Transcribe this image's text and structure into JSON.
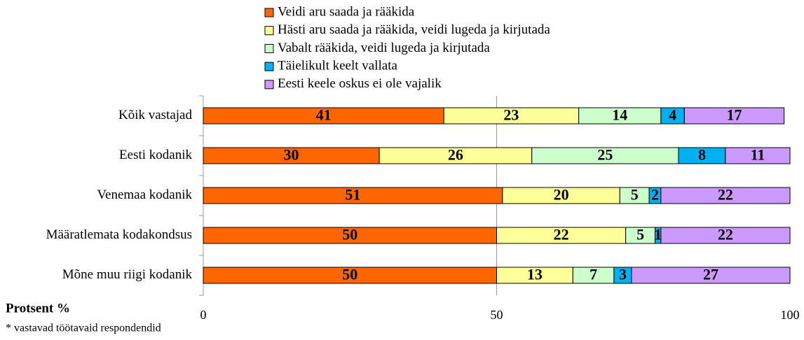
{
  "chart_data": {
    "type": "stacked-bar-horizontal",
    "categories": [
      "Kõik vastajad",
      "Eesti kodanik",
      "Venemaa kodanik",
      "Määratlemata kodakondsus",
      "Mõne muu riigi kodanik"
    ],
    "series": [
      {
        "name": "Veidi aru saada ja rääkida",
        "color": "#ff6600",
        "values": [
          41,
          30,
          51,
          50,
          50
        ]
      },
      {
        "name": "Hästi aru saada ja rääkida, veidi lugeda ja kirjutada",
        "color": "#ffff99",
        "values": [
          23,
          26,
          20,
          22,
          13
        ]
      },
      {
        "name": "Vabalt rääkida, veidi lugeda ja kirjutada",
        "color": "#ccffcc",
        "values": [
          14,
          25,
          5,
          5,
          7
        ]
      },
      {
        "name": "Täielikult keelt vallata",
        "color": "#00b0f0",
        "values": [
          4,
          8,
          2,
          1,
          3
        ]
      },
      {
        "name": "Eesti keele oskus ei ole vajalik",
        "color": "#cc99ff",
        "values": [
          17,
          11,
          22,
          22,
          27
        ]
      }
    ],
    "xlim": [
      0,
      100
    ],
    "xticks": [
      0,
      50,
      100
    ],
    "grid": true,
    "xlabel": "Protsent %",
    "footnote": "* vastavad töötavaid respondendid"
  }
}
